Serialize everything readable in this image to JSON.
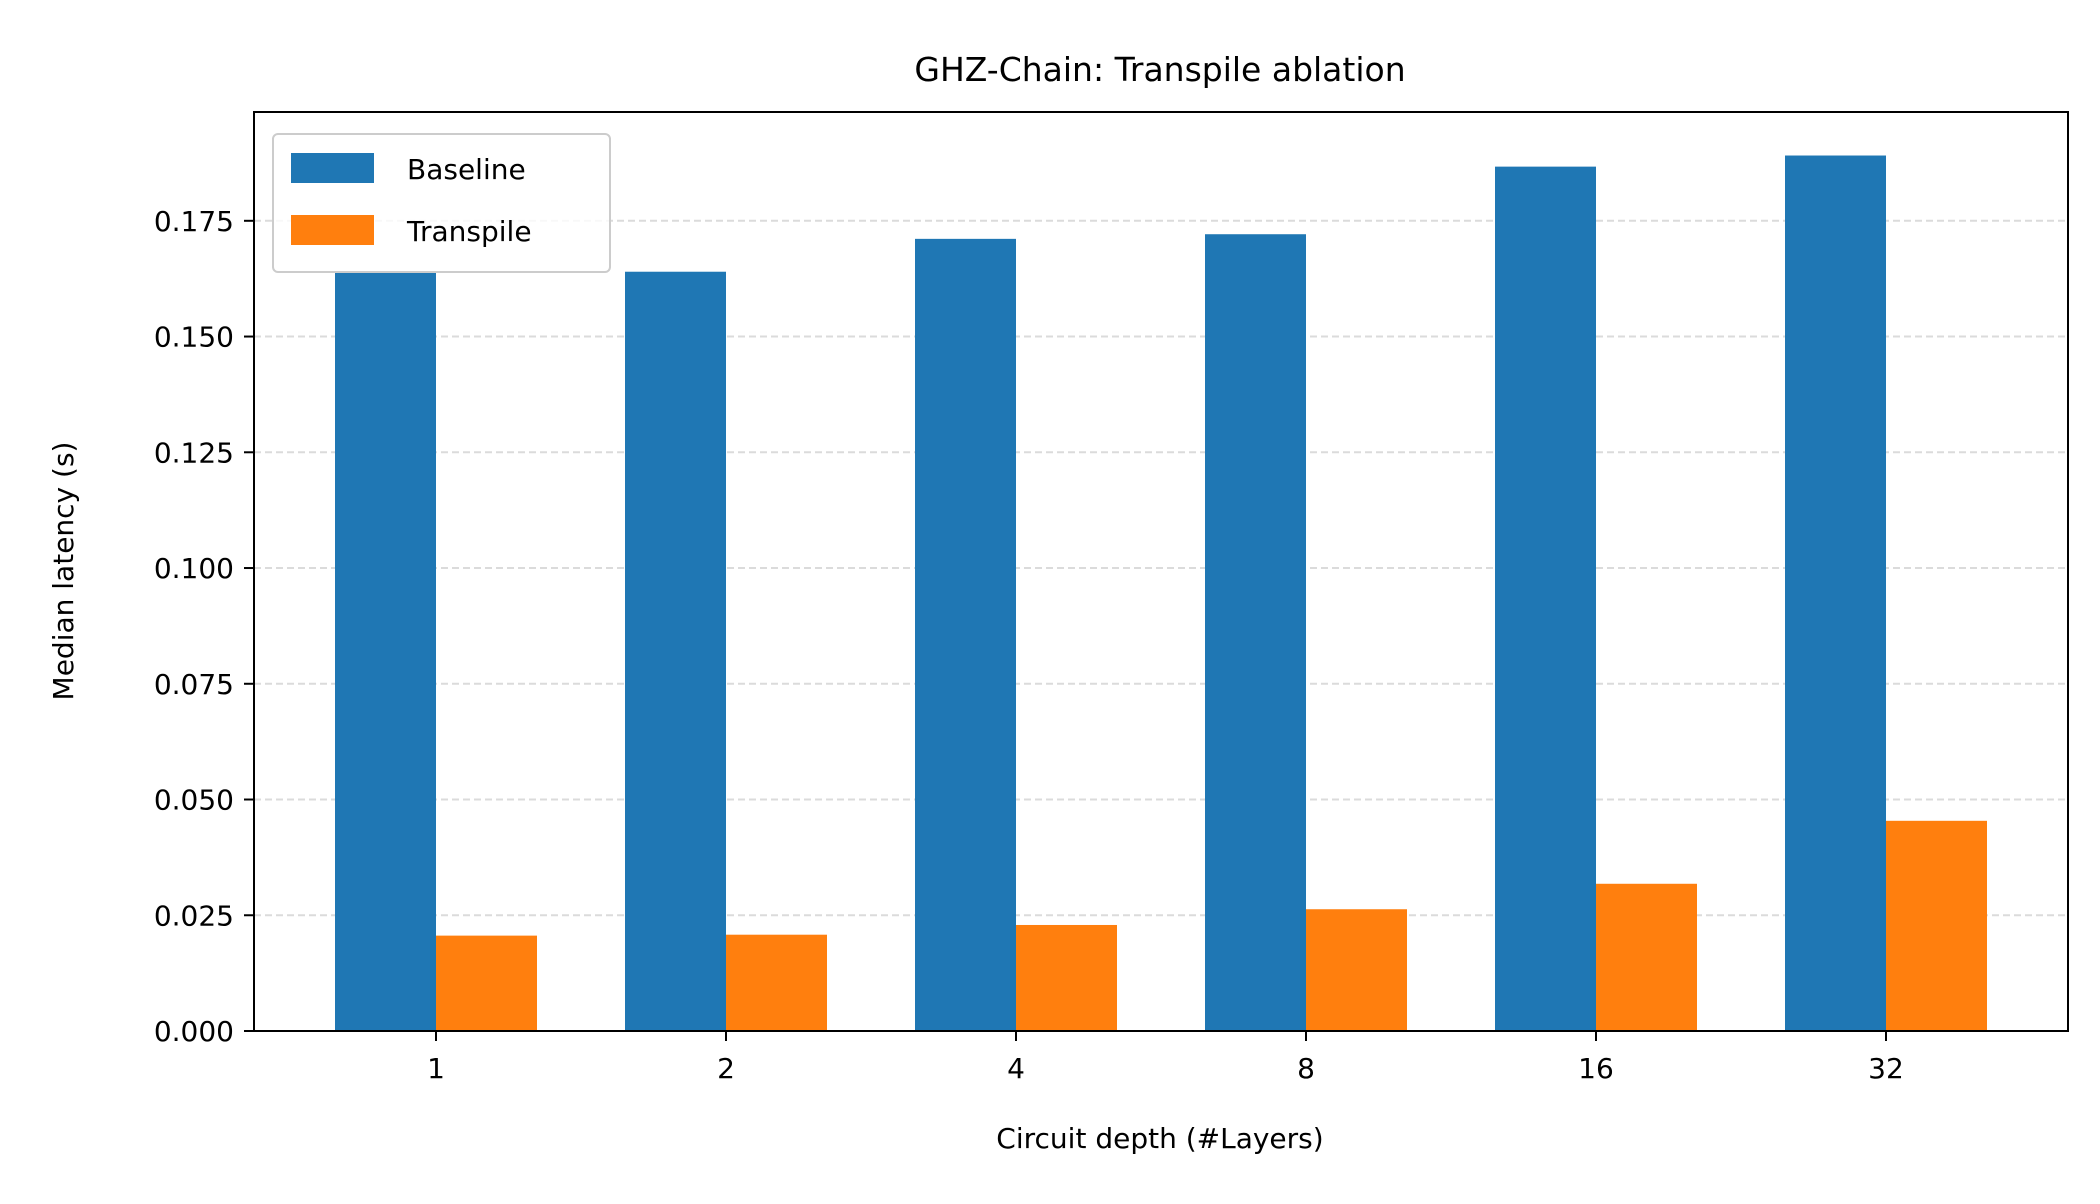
{
  "chart_data": {
    "type": "bar",
    "title": "GHZ-Chain: Transpile ablation",
    "xlabel": "Circuit depth (#Layers)",
    "ylabel": "Median latency (s)",
    "categories": [
      "1",
      "2",
      "4",
      "8",
      "16",
      "32"
    ],
    "series": [
      {
        "name": "Baseline",
        "color": "#1f77b4",
        "values": [
          0.1641,
          0.164,
          0.1711,
          0.1721,
          0.1867,
          0.1891
        ]
      },
      {
        "name": "Transpile",
        "color": "#ff7f0e",
        "values": [
          0.0206,
          0.0208,
          0.0229,
          0.0263,
          0.0318,
          0.0454
        ]
      }
    ],
    "yticks": [
      0.0,
      0.025,
      0.05,
      0.075,
      0.1,
      0.125,
      0.15,
      0.175
    ],
    "ytick_labels": [
      "0.000",
      "0.025",
      "0.050",
      "0.075",
      "0.100",
      "0.125",
      "0.150",
      "0.175"
    ],
    "ylim": [
      0,
      0.1985
    ],
    "grid": "y-dashed",
    "legend_position": "upper-left"
  }
}
